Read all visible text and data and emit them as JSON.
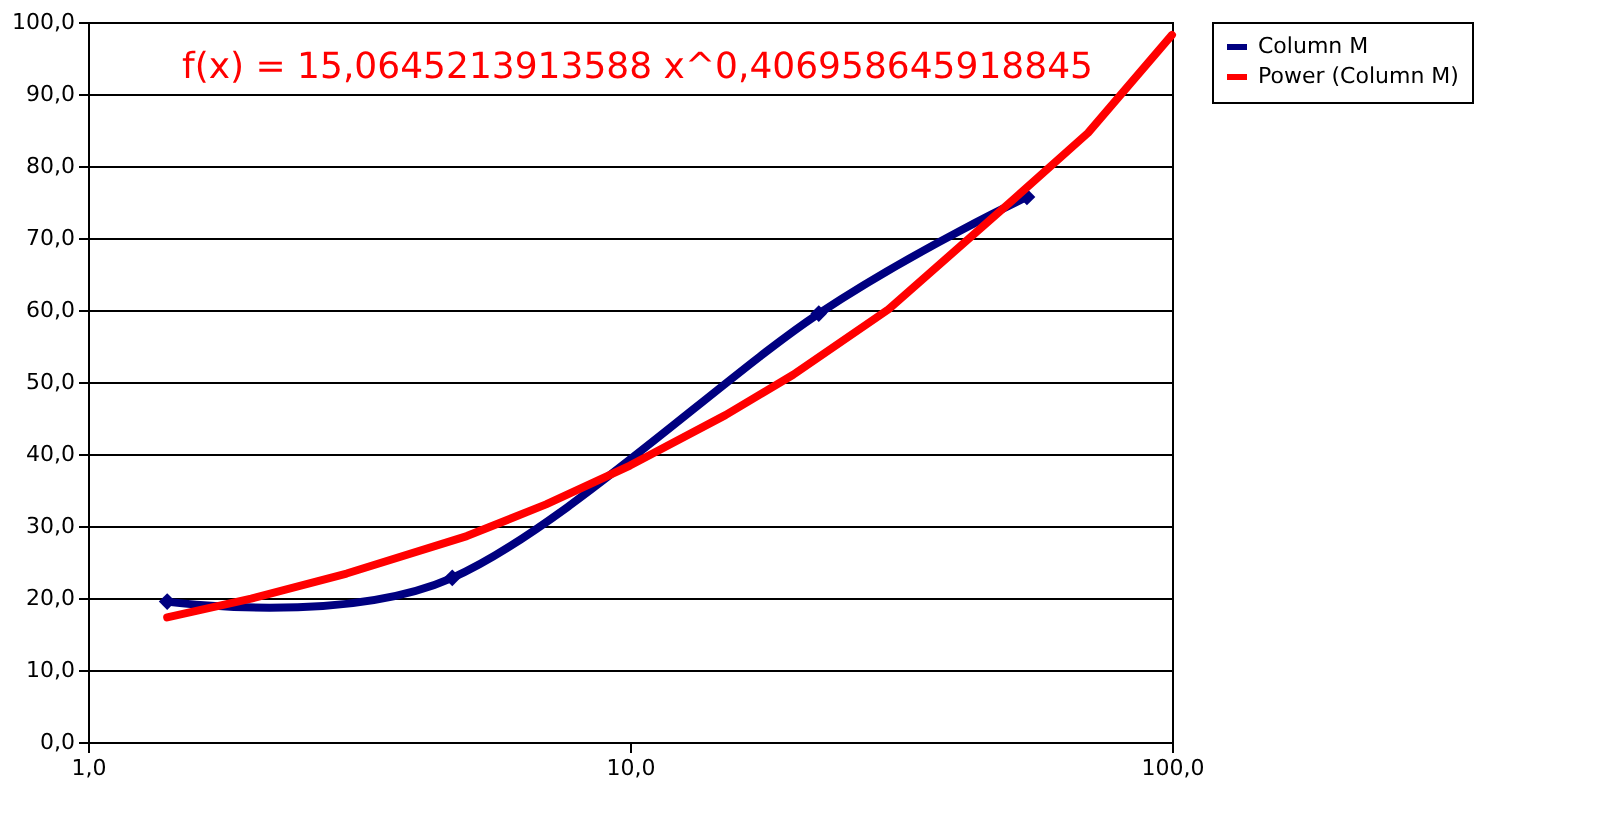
{
  "chart_data": {
    "type": "line",
    "log": "x",
    "grid": "y",
    "legend": "right",
    "marker": "diamond",
    "xlim": [
      1,
      100
    ],
    "xticks": [
      {
        "value": 1,
        "label": "1,0"
      },
      {
        "value": 10,
        "label": "10,0"
      },
      {
        "value": 100,
        "label": "100,0"
      }
    ],
    "ylim": [
      0,
      100
    ],
    "yticks": [
      {
        "value": 0,
        "label": "0,0"
      },
      {
        "value": 10,
        "label": "10,0"
      },
      {
        "value": 20,
        "label": "20,0"
      },
      {
        "value": 30,
        "label": "30,0"
      },
      {
        "value": 40,
        "label": "40,0"
      },
      {
        "value": 50,
        "label": "50,0"
      },
      {
        "value": 60,
        "label": "60,0"
      },
      {
        "value": 70,
        "label": "70,0"
      },
      {
        "value": 80,
        "label": "80,0"
      },
      {
        "value": 90,
        "label": "90,0"
      },
      {
        "value": 100,
        "label": "100,0"
      }
    ],
    "annotations": [
      "f(x) = 15,0645213913588 x^0,406958645918845"
    ],
    "series": [
      {
        "name": "Column M",
        "color": "#000080",
        "x": [
          1.4,
          4.7,
          22.3,
          54
        ],
        "values": [
          19.5,
          22.8,
          59.5,
          75.7
        ]
      },
      {
        "name": "Power (Column M)",
        "color": "#ff0000",
        "type": "line",
        "marker": "none",
        "x": [
          1.4,
          2,
          3,
          5,
          7,
          10,
          15,
          20,
          30,
          50,
          70,
          100
        ],
        "values": [
          17.3,
          19.9,
          23.4,
          28.6,
          33.0,
          38.4,
          45.4,
          51.0,
          60.1,
          74.8,
          84.6,
          98.2
        ]
      }
    ]
  }
}
